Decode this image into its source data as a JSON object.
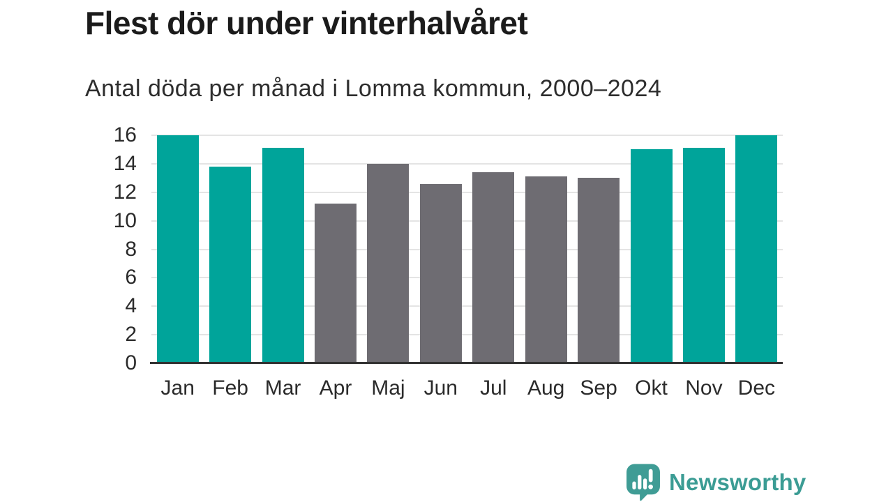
{
  "header": {
    "title": "Flest dör under vinterhalvåret",
    "subtitle": "Antal döda per månad i Lomma kommun, 2000–2024"
  },
  "chart_data": {
    "type": "bar",
    "title": "Flest dör under vinterhalvåret",
    "subtitle": "Antal döda per månad i Lomma kommun, 2000–2024",
    "categories": [
      "Jan",
      "Feb",
      "Mar",
      "Apr",
      "Maj",
      "Jun",
      "Jul",
      "Aug",
      "Sep",
      "Okt",
      "Nov",
      "Dec"
    ],
    "values": [
      16.0,
      13.8,
      15.1,
      11.2,
      14.0,
      12.6,
      13.4,
      13.1,
      13.0,
      15.0,
      15.1,
      16.0
    ],
    "bar_colors": [
      "#00a49a",
      "#00a49a",
      "#00a49a",
      "#6e6c72",
      "#6e6c72",
      "#6e6c72",
      "#6e6c72",
      "#6e6c72",
      "#6e6c72",
      "#00a49a",
      "#00a49a",
      "#00a49a"
    ],
    "xlabel": "",
    "ylabel": "",
    "ylim": [
      0,
      16
    ],
    "yticks": [
      0,
      2,
      4,
      6,
      8,
      10,
      12,
      14,
      16
    ],
    "grid": true,
    "legend": false,
    "colors": {
      "winter_accent": "#00a49a",
      "summer_neutral": "#6e6c72",
      "gridline": "#e4e4e4",
      "axis": "#323232",
      "text": "#2b2b2b"
    }
  },
  "footer": {
    "logo_text": "Newsworthy",
    "logo_color": "#3b9c94",
    "logo_icon": "speech-bubble-bar-chart-icon"
  }
}
